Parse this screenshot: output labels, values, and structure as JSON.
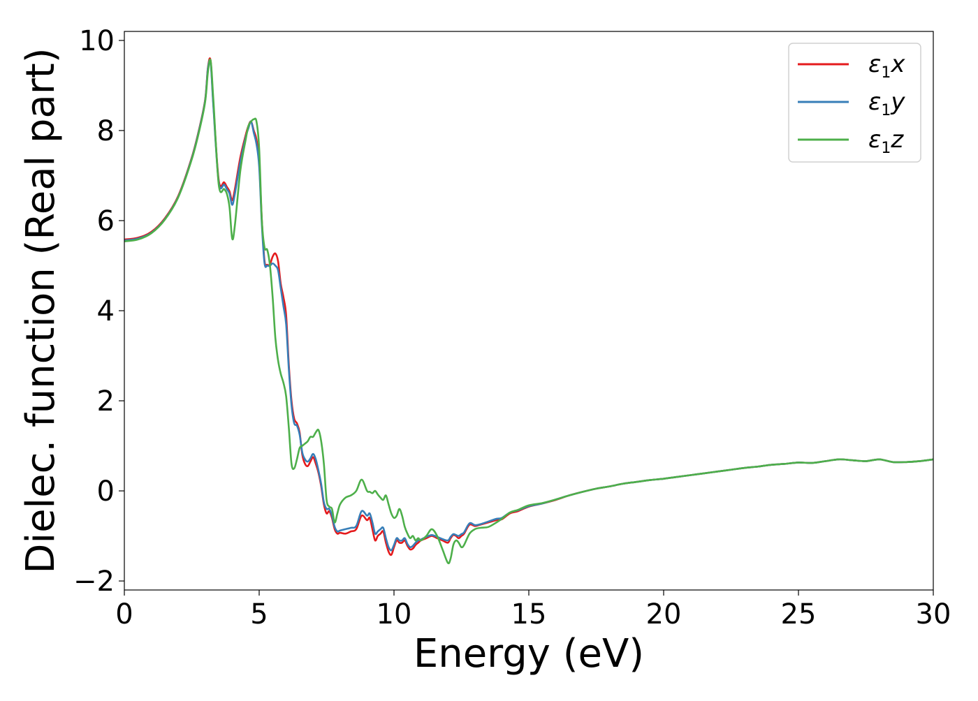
{
  "chart_data": {
    "type": "line",
    "xlabel": "Energy (eV)",
    "ylabel": "Dielec. function (Real part)",
    "xlim": [
      0,
      30
    ],
    "ylim": [
      -2.2,
      10.2
    ],
    "xticks": [
      0,
      5,
      10,
      15,
      20,
      25,
      30
    ],
    "xtick_labels": [
      "0",
      "5",
      "10",
      "15",
      "20",
      "25",
      "30"
    ],
    "yticks": [
      -2,
      0,
      2,
      4,
      6,
      8,
      10
    ],
    "ytick_labels": [
      "−2",
      "0",
      "2",
      "4",
      "6",
      "8",
      "10"
    ],
    "grid": false,
    "legend": {
      "placement": "top-right"
    },
    "series": [
      {
        "name": "ε1x",
        "label_main": "ε",
        "label_sub": "1",
        "label_tail": "x",
        "color": "#e41a1c",
        "x": [
          0,
          0.5,
          1,
          1.5,
          2,
          2.5,
          2.8,
          3.0,
          3.1,
          3.2,
          3.3,
          3.5,
          3.7,
          3.8,
          3.9,
          4.0,
          4.1,
          4.3,
          4.5,
          4.6,
          4.7,
          4.8,
          4.9,
          5.0,
          5.1,
          5.2,
          5.3,
          5.4,
          5.5,
          5.6,
          5.7,
          5.8,
          5.9,
          6.0,
          6.1,
          6.2,
          6.3,
          6.4,
          6.5,
          6.6,
          6.7,
          6.8,
          6.9,
          7.0,
          7.1,
          7.2,
          7.3,
          7.4,
          7.5,
          7.6,
          7.7,
          7.8,
          7.9,
          8.0,
          8.2,
          8.4,
          8.6,
          8.8,
          9.0,
          9.1,
          9.2,
          9.3,
          9.4,
          9.5,
          9.6,
          9.7,
          9.8,
          9.9,
          10.0,
          10.1,
          10.2,
          10.3,
          10.4,
          10.5,
          10.6,
          10.7,
          10.8,
          10.9,
          11.0,
          11.2,
          11.4,
          11.6,
          11.8,
          12.0,
          12.1,
          12.2,
          12.3,
          12.4,
          12.5,
          12.6,
          12.8,
          13.0,
          13.2,
          13.5,
          13.8,
          14.0,
          14.3,
          14.6,
          15.0,
          15.5,
          16.0,
          16.5,
          17.0,
          17.5,
          18.0,
          18.5,
          19.0,
          19.5,
          20.0,
          20.5,
          21.0,
          21.5,
          22.0,
          22.5,
          23.0,
          23.5,
          24.0,
          24.5,
          25.0,
          25.5,
          26.0,
          26.5,
          27.0,
          27.5,
          28.0,
          28.5,
          29.0,
          29.5,
          30.0
        ],
        "y": [
          5.58,
          5.62,
          5.75,
          6.05,
          6.55,
          7.4,
          8.1,
          8.7,
          9.4,
          9.55,
          8.6,
          6.9,
          6.85,
          6.75,
          6.65,
          6.45,
          6.7,
          7.4,
          7.9,
          8.1,
          8.2,
          8.0,
          7.8,
          7.3,
          6.0,
          5.1,
          5.02,
          5.03,
          5.2,
          5.27,
          5.1,
          4.6,
          4.3,
          3.9,
          2.8,
          2.0,
          1.6,
          1.5,
          1.3,
          0.8,
          0.6,
          0.55,
          0.65,
          0.75,
          0.6,
          0.4,
          0.1,
          -0.3,
          -0.5,
          -0.45,
          -0.6,
          -0.85,
          -0.95,
          -0.93,
          -0.95,
          -0.9,
          -0.85,
          -0.55,
          -0.65,
          -0.6,
          -0.85,
          -1.1,
          -1.0,
          -0.95,
          -0.9,
          -1.15,
          -1.35,
          -1.42,
          -1.25,
          -1.1,
          -1.15,
          -1.15,
          -1.1,
          -1.22,
          -1.3,
          -1.28,
          -1.2,
          -1.15,
          -1.1,
          -1.05,
          -1.0,
          -1.05,
          -1.1,
          -1.15,
          -1.05,
          -0.98,
          -1.0,
          -1.05,
          -1.0,
          -0.95,
          -0.75,
          -0.78,
          -0.75,
          -0.7,
          -0.65,
          -0.63,
          -0.5,
          -0.45,
          -0.35,
          -0.28,
          -0.2,
          -0.1,
          -0.02,
          0.05,
          0.1,
          0.16,
          0.2,
          0.24,
          0.27,
          0.31,
          0.35,
          0.39,
          0.43,
          0.47,
          0.51,
          0.54,
          0.58,
          0.6,
          0.63,
          0.62,
          0.66,
          0.7,
          0.68,
          0.66,
          0.7,
          0.64,
          0.64,
          0.66,
          0.7
        ]
      },
      {
        "name": "ε1y",
        "label_main": "ε",
        "label_sub": "1",
        "label_tail": "y",
        "color": "#377eb8",
        "x": [
          0,
          0.5,
          1,
          1.5,
          2,
          2.5,
          2.8,
          3.0,
          3.1,
          3.2,
          3.3,
          3.5,
          3.7,
          3.8,
          3.9,
          4.0,
          4.1,
          4.3,
          4.5,
          4.6,
          4.7,
          4.8,
          4.9,
          5.0,
          5.1,
          5.2,
          5.3,
          5.4,
          5.5,
          5.6,
          5.7,
          5.8,
          5.9,
          6.0,
          6.1,
          6.2,
          6.3,
          6.4,
          6.5,
          6.6,
          6.7,
          6.8,
          6.9,
          7.0,
          7.1,
          7.2,
          7.3,
          7.4,
          7.5,
          7.6,
          7.7,
          7.8,
          7.9,
          8.0,
          8.2,
          8.4,
          8.6,
          8.8,
          9.0,
          9.1,
          9.2,
          9.3,
          9.4,
          9.5,
          9.6,
          9.7,
          9.8,
          9.9,
          10.0,
          10.1,
          10.2,
          10.3,
          10.4,
          10.5,
          10.6,
          10.7,
          10.8,
          10.9,
          11.0,
          11.2,
          11.4,
          11.6,
          11.8,
          12.0,
          12.1,
          12.2,
          12.3,
          12.4,
          12.5,
          12.6,
          12.8,
          13.0,
          13.2,
          13.5,
          13.8,
          14.0,
          14.3,
          14.6,
          15.0,
          15.5,
          16.0,
          16.5,
          17.0,
          17.5,
          18.0,
          18.5,
          19.0,
          19.5,
          20.0,
          20.5,
          21.0,
          21.5,
          22.0,
          22.5,
          23.0,
          23.5,
          24.0,
          24.5,
          25.0,
          25.5,
          26.0,
          26.5,
          27.0,
          27.5,
          28.0,
          28.5,
          29.0,
          29.5,
          30.0
        ],
        "y": [
          5.56,
          5.6,
          5.73,
          6.03,
          6.53,
          7.38,
          8.08,
          8.68,
          9.38,
          9.5,
          8.55,
          6.85,
          6.8,
          6.7,
          6.6,
          6.35,
          6.6,
          7.3,
          7.85,
          8.05,
          8.2,
          7.95,
          7.7,
          7.2,
          5.9,
          5.05,
          5.0,
          5.0,
          5.05,
          5.0,
          4.9,
          4.5,
          4.1,
          3.7,
          2.7,
          1.9,
          1.5,
          1.45,
          1.25,
          0.85,
          0.7,
          0.65,
          0.72,
          0.82,
          0.7,
          0.45,
          0.15,
          -0.25,
          -0.4,
          -0.4,
          -0.55,
          -0.8,
          -0.9,
          -0.88,
          -0.85,
          -0.82,
          -0.78,
          -0.45,
          -0.55,
          -0.5,
          -0.7,
          -0.95,
          -0.9,
          -0.85,
          -0.82,
          -1.05,
          -1.25,
          -1.32,
          -1.2,
          -1.05,
          -1.1,
          -1.1,
          -1.05,
          -1.18,
          -1.25,
          -1.22,
          -1.15,
          -1.1,
          -1.08,
          -1.02,
          -0.98,
          -1.02,
          -1.07,
          -1.1,
          -1.02,
          -0.96,
          -0.98,
          -1.0,
          -0.96,
          -0.92,
          -0.72,
          -0.76,
          -0.74,
          -0.68,
          -0.62,
          -0.6,
          -0.48,
          -0.43,
          -0.34,
          -0.28,
          -0.19,
          -0.1,
          -0.02,
          0.05,
          0.1,
          0.16,
          0.2,
          0.24,
          0.27,
          0.31,
          0.35,
          0.39,
          0.43,
          0.47,
          0.51,
          0.54,
          0.58,
          0.6,
          0.63,
          0.62,
          0.66,
          0.7,
          0.68,
          0.66,
          0.7,
          0.64,
          0.64,
          0.66,
          0.7
        ]
      },
      {
        "name": "ε1z",
        "label_main": "ε",
        "label_sub": "1",
        "label_tail": "z",
        "color": "#4daf4a",
        "x": [
          0,
          0.5,
          1,
          1.5,
          2,
          2.5,
          2.8,
          3.0,
          3.1,
          3.2,
          3.3,
          3.5,
          3.7,
          3.8,
          3.9,
          4.0,
          4.1,
          4.3,
          4.5,
          4.6,
          4.7,
          4.8,
          4.9,
          5.0,
          5.1,
          5.2,
          5.3,
          5.4,
          5.5,
          5.6,
          5.7,
          5.8,
          5.9,
          6.0,
          6.1,
          6.2,
          6.3,
          6.4,
          6.5,
          6.6,
          6.7,
          6.8,
          6.9,
          7.0,
          7.1,
          7.2,
          7.3,
          7.4,
          7.5,
          7.6,
          7.7,
          7.8,
          7.9,
          8.0,
          8.2,
          8.4,
          8.6,
          8.8,
          9.0,
          9.1,
          9.2,
          9.3,
          9.4,
          9.5,
          9.6,
          9.7,
          9.8,
          9.9,
          10.0,
          10.1,
          10.2,
          10.3,
          10.4,
          10.5,
          10.6,
          10.7,
          10.8,
          10.9,
          11.0,
          11.2,
          11.4,
          11.6,
          11.8,
          12.0,
          12.1,
          12.2,
          12.3,
          12.4,
          12.5,
          12.6,
          12.8,
          13.0,
          13.2,
          13.5,
          13.8,
          14.0,
          14.3,
          14.6,
          15.0,
          15.5,
          16.0,
          16.5,
          17.0,
          17.5,
          18.0,
          18.5,
          19.0,
          19.5,
          20.0,
          20.5,
          21.0,
          21.5,
          22.0,
          22.5,
          23.0,
          23.5,
          24.0,
          24.5,
          25.0,
          25.5,
          26.0,
          26.5,
          27.0,
          27.5,
          28.0,
          28.5,
          29.0,
          29.5,
          30.0
        ],
        "y": [
          5.54,
          5.58,
          5.72,
          6.02,
          6.52,
          7.36,
          8.05,
          8.65,
          9.3,
          9.55,
          8.7,
          6.8,
          6.7,
          6.6,
          6.3,
          5.6,
          5.9,
          7.1,
          7.8,
          8.1,
          8.2,
          8.25,
          8.2,
          7.6,
          6.0,
          5.4,
          5.35,
          5.0,
          4.3,
          3.4,
          2.9,
          2.6,
          2.4,
          2.1,
          1.4,
          0.6,
          0.5,
          0.7,
          0.95,
          1.0,
          1.05,
          1.1,
          1.2,
          1.2,
          1.3,
          1.35,
          1.1,
          0.6,
          -0.2,
          -0.35,
          -0.4,
          -0.7,
          -0.5,
          -0.3,
          -0.15,
          -0.1,
          0.0,
          0.25,
          0.0,
          -0.02,
          -0.05,
          0.0,
          -0.08,
          -0.15,
          -0.2,
          -0.1,
          -0.3,
          -0.5,
          -0.6,
          -0.55,
          -0.4,
          -0.55,
          -0.8,
          -0.95,
          -1.05,
          -1.0,
          -1.1,
          -1.05,
          -1.1,
          -1.0,
          -0.85,
          -1.0,
          -1.3,
          -1.6,
          -1.5,
          -1.2,
          -1.1,
          -1.15,
          -1.25,
          -1.2,
          -0.95,
          -0.85,
          -0.82,
          -0.8,
          -0.7,
          -0.62,
          -0.48,
          -0.42,
          -0.32,
          -0.27,
          -0.19,
          -0.1,
          -0.02,
          0.05,
          0.1,
          0.16,
          0.2,
          0.24,
          0.27,
          0.31,
          0.35,
          0.39,
          0.43,
          0.47,
          0.51,
          0.54,
          0.58,
          0.6,
          0.63,
          0.62,
          0.66,
          0.7,
          0.68,
          0.66,
          0.7,
          0.64,
          0.64,
          0.66,
          0.7
        ]
      }
    ]
  }
}
